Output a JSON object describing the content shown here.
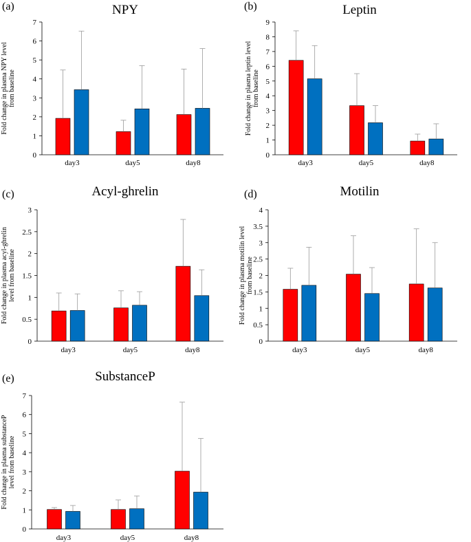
{
  "series_colors": {
    "red": "#ff0000",
    "blue": "#0070c0"
  },
  "chart_data": [
    {
      "panel": "(a)",
      "type": "bar",
      "title": "NPY",
      "ylabel_lines": [
        "Fold change in plasma NPY level",
        "from baseline"
      ],
      "categories": [
        "day3",
        "day5",
        "day8"
      ],
      "ylim": [
        0,
        7
      ],
      "yticks": [
        "0",
        "1",
        "2",
        "3",
        "4",
        "5",
        "6",
        "7"
      ],
      "series": [
        {
          "name": "red",
          "values": [
            1.92,
            1.22,
            2.12
          ],
          "err_high": [
            4.47,
            1.82,
            4.52
          ]
        },
        {
          "name": "blue",
          "values": [
            3.43,
            2.42,
            2.45
          ],
          "err_high": [
            6.52,
            4.7,
            5.6
          ]
        }
      ]
    },
    {
      "panel": "(b)",
      "type": "bar",
      "title": "Leptin",
      "ylabel_lines": [
        "Fold change in plasma leptin level",
        "from baseline"
      ],
      "categories": [
        "day3",
        "day5",
        "day8"
      ],
      "ylim": [
        0,
        9
      ],
      "yticks": [
        "0",
        "1",
        "2",
        "3",
        "4",
        "5",
        "6",
        "7",
        "8",
        "9"
      ],
      "series": [
        {
          "name": "red",
          "values": [
            6.4,
            3.33,
            0.93
          ],
          "err_high": [
            8.4,
            5.5,
            1.4
          ]
        },
        {
          "name": "blue",
          "values": [
            5.15,
            2.17,
            1.07
          ],
          "err_high": [
            7.4,
            3.33,
            2.1
          ]
        }
      ]
    },
    {
      "panel": "(c)",
      "type": "bar",
      "title": "Acyl-ghrelin",
      "ylabel_lines": [
        "Fold change in plasma acyl-ghrelin",
        "level from baseline"
      ],
      "categories": [
        "day3",
        "day5",
        "day8"
      ],
      "ylim": [
        0,
        3
      ],
      "yticks": [
        "0",
        "0.5",
        "1",
        "1.5",
        "2",
        "2.5",
        "3"
      ],
      "series": [
        {
          "name": "red",
          "values": [
            0.69,
            0.76,
            1.71
          ],
          "err_high": [
            1.1,
            1.15,
            2.78
          ]
        },
        {
          "name": "blue",
          "values": [
            0.7,
            0.82,
            1.04
          ],
          "err_high": [
            1.08,
            1.13,
            1.63
          ]
        }
      ]
    },
    {
      "panel": "(d)",
      "type": "bar",
      "title": "Motilin",
      "ylabel_lines": [
        "Fold change in plasma motilin level",
        "from baseline"
      ],
      "categories": [
        "day3",
        "day5",
        "day8"
      ],
      "ylim": [
        0,
        4
      ],
      "yticks": [
        "0",
        "0.5",
        "1",
        "1.5",
        "2",
        "2.5",
        "3",
        "3.5",
        "4"
      ],
      "series": [
        {
          "name": "red",
          "values": [
            1.58,
            2.04,
            1.74
          ],
          "err_high": [
            2.22,
            3.21,
            3.42
          ]
        },
        {
          "name": "blue",
          "values": [
            1.7,
            1.45,
            1.62
          ],
          "err_high": [
            2.86,
            2.24,
            3.0
          ]
        }
      ]
    },
    {
      "panel": "(e)",
      "type": "bar",
      "title": "SubstanceP",
      "ylabel_lines": [
        "Fold change in plasma substanceP",
        "level from baseline"
      ],
      "categories": [
        "day3",
        "day5",
        "day8"
      ],
      "ylim": [
        0,
        7
      ],
      "yticks": [
        "0",
        "1",
        "2",
        "3",
        "4",
        "5",
        "6",
        "7"
      ],
      "series": [
        {
          "name": "red",
          "values": [
            1.02,
            1.02,
            3.03
          ],
          "err_high": [
            1.12,
            1.52,
            6.65
          ]
        },
        {
          "name": "blue",
          "values": [
            0.92,
            1.06,
            1.93
          ],
          "err_high": [
            1.23,
            1.73,
            4.75
          ]
        }
      ]
    }
  ]
}
